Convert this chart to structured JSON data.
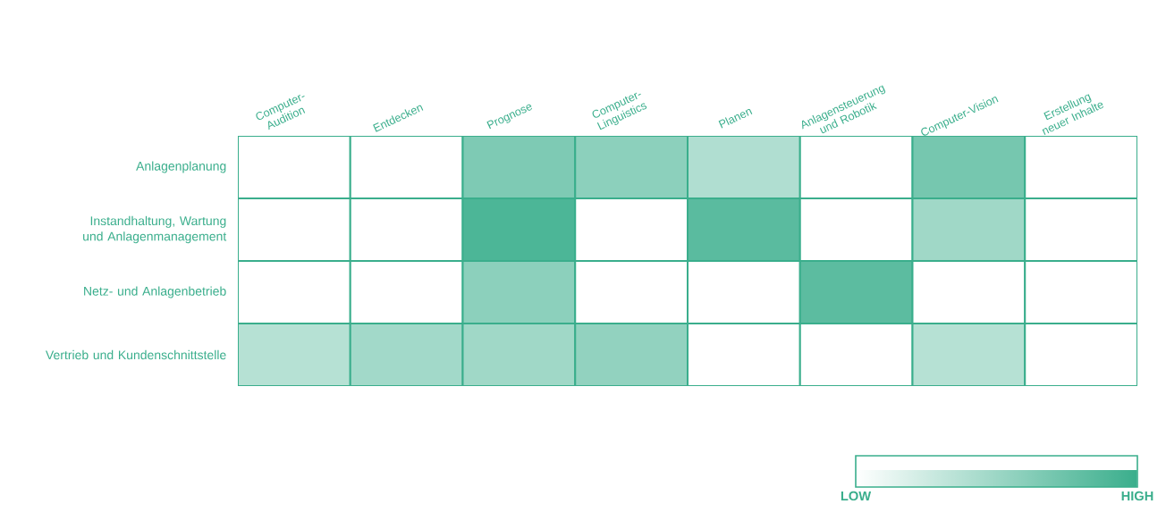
{
  "chart_data": {
    "type": "heatmap",
    "categories": [
      "Computer-Audition",
      "Entdecken",
      "Prognose",
      "Computer-Linguistics",
      "Planen",
      "Anlagensteuerung und Robotik",
      "Computer-Vision",
      "Erstellung neuer Inhalte"
    ],
    "y_categories": [
      "Anlagenplanung",
      "Instandhaltung, Wartung und Anlagenmanagement",
      "Netz- und Anlagenbetrieb",
      "Vertrieb und Kundenschnittstelle"
    ],
    "cells": [
      [
        0,
        0,
        0.65,
        0.58,
        0.4,
        0,
        0.69,
        0
      ],
      [
        0,
        0,
        0.9,
        0,
        0.83,
        0,
        0.48,
        0
      ],
      [
        0,
        0,
        0.58,
        0,
        0,
        0.82,
        0,
        0
      ],
      [
        0.37,
        0.47,
        0.48,
        0.55,
        0,
        0,
        0.37,
        0
      ]
    ],
    "clim": [
      0,
      1
    ],
    "cticks": [
      {
        "value": 0,
        "label": "LOW"
      },
      {
        "value": 1,
        "label": "HIGH"
      }
    ]
  }
}
